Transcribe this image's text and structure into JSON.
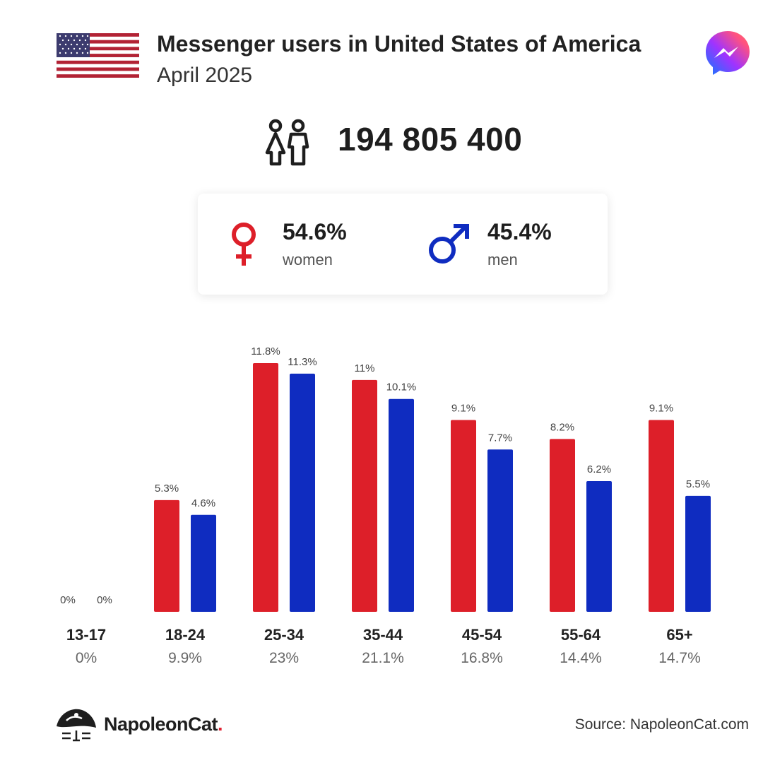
{
  "header": {
    "title": "Messenger users in United States of America",
    "subtitle": "April 2025"
  },
  "summary": {
    "total_users": "194 805 400",
    "women_pct": "54.6%",
    "women_label": "women",
    "men_pct": "45.4%",
    "men_label": "men"
  },
  "colors": {
    "women": "#dd1f29",
    "men": "#0f2cc0"
  },
  "icons": {
    "flag": "usa-flag-icon",
    "app": "messenger-icon",
    "people": "people-icon",
    "female": "female-symbol-icon",
    "male": "male-symbol-icon",
    "brand": "napoleoncat-logo-icon"
  },
  "chart_data": {
    "type": "bar",
    "categories": [
      "13-17",
      "18-24",
      "25-34",
      "35-44",
      "45-54",
      "55-64",
      "65+"
    ],
    "category_totals": [
      "0%",
      "9.9%",
      "23%",
      "21.1%",
      "16.8%",
      "14.4%",
      "14.7%"
    ],
    "series": [
      {
        "values": [
          0,
          5.3,
          11.8,
          11,
          9.1,
          8.2,
          9.1
        ],
        "labels": [
          "0%",
          "5.3%",
          "11.8%",
          "11%",
          "9.1%",
          "8.2%",
          "9.1%"
        ],
        "color": "#dd1f29"
      },
      {
        "values": [
          0,
          4.6,
          11.3,
          10.1,
          7.7,
          6.2,
          5.5
        ],
        "labels": [
          "0%",
          "4.6%",
          "11.3%",
          "10.1%",
          "7.7%",
          "6.2%",
          "5.5%"
        ],
        "color": "#0f2cc0"
      }
    ],
    "ylim": [
      0,
      11.8
    ]
  },
  "footer": {
    "brand_name": "NapoleonCat",
    "brand_dot": ".",
    "source": "Source: NapoleonCat.com"
  }
}
